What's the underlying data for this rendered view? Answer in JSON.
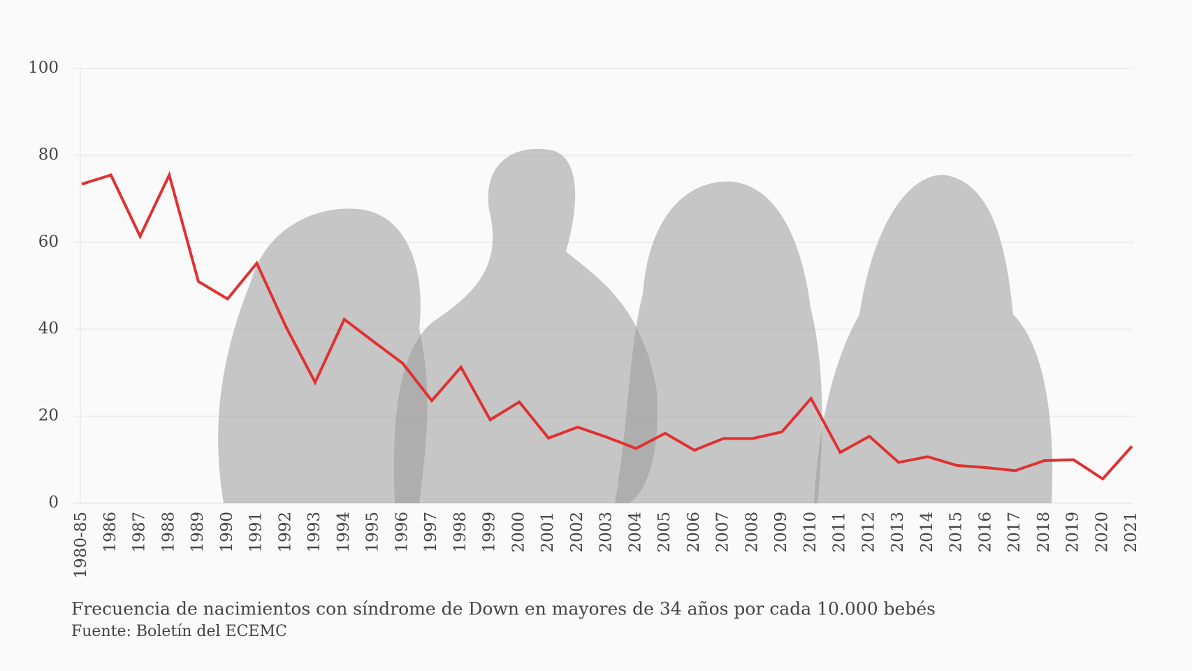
{
  "chart_data": {
    "type": "line",
    "caption": "Frecuencia de nacimientos con síndrome de Down en mayores de 34 años por cada 10.000 bebés",
    "source": "Fuente: Boletín del ECEMC",
    "categories": [
      "1980-85",
      "1986",
      "1987",
      "1988",
      "1989",
      "1990",
      "1991",
      "1992",
      "1993",
      "1994",
      "1995",
      "1996",
      "1997",
      "1998",
      "1999",
      "2000",
      "2001",
      "2002",
      "2003",
      "2004",
      "2005",
      "2006",
      "2007",
      "2008",
      "2009",
      "2010",
      "2011",
      "2012",
      "2013",
      "2014",
      "2015",
      "2016",
      "2017",
      "2018",
      "2019",
      "2020",
      "2021"
    ],
    "series": [
      {
        "name": "Frecuencia",
        "color": "#e03131",
        "values": [
          73.4,
          75.5,
          61.4,
          75.5,
          51,
          47,
          55.2,
          40.6,
          27.8,
          42.3,
          37.2,
          32.2,
          23.6,
          31.3,
          19.2,
          23.3,
          15,
          17.5,
          15.2,
          12.6,
          16.1,
          12.2,
          14.9,
          14.9,
          16.4,
          24.1,
          11.7,
          15.4,
          9.4,
          10.7,
          8.7,
          8.2,
          7.5,
          9.8,
          10,
          5.6,
          13.1
        ]
      }
    ],
    "ylim": [
      0,
      100
    ],
    "yticks": [
      0,
      20,
      40,
      60,
      80,
      100
    ],
    "grid": true
  }
}
